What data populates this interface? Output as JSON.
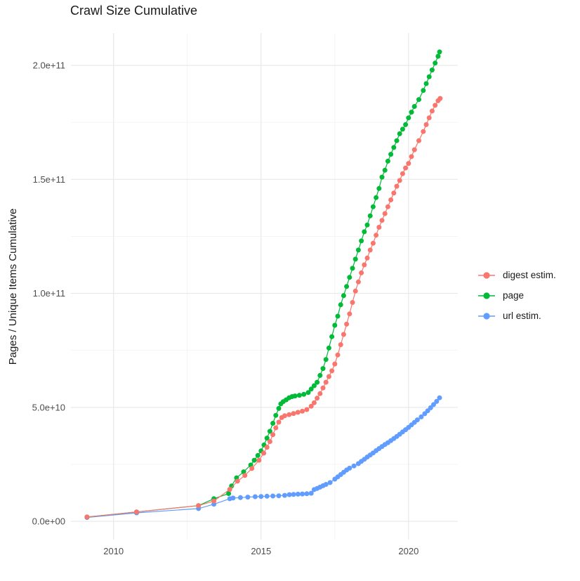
{
  "title": "Crawl Size Cumulative",
  "chart_data": {
    "type": "scatter",
    "title": "Crawl Size Cumulative",
    "xlabel": "",
    "ylabel": "Pages / Unique Items Cumulative",
    "grid": true,
    "legend_position": "right",
    "x_unit": "decimal year",
    "y_unit": "pages (values stored in units of 1e9)",
    "xlim": [
      2008.555,
      2021.67
    ],
    "ylim_e9": [
      -8,
      214.2
    ],
    "x_ticks": [
      {
        "value": 2010,
        "label": "2010"
      },
      {
        "value": 2015,
        "label": "2015"
      },
      {
        "value": 2020,
        "label": "2020"
      }
    ],
    "x_minor": [
      2012.5,
      2017.5
    ],
    "y_ticks": [
      {
        "value_e9": 0,
        "label": "0.0e+00"
      },
      {
        "value_e9": 50,
        "label": "5.0e+10"
      },
      {
        "value_e9": 100,
        "label": "1.0e+11"
      },
      {
        "value_e9": 150,
        "label": "1.5e+11"
      },
      {
        "value_e9": 200,
        "label": "2.0e+11"
      }
    ],
    "y_minor_e9": [
      25,
      75,
      125,
      175
    ],
    "draw_order": [
      2,
      1,
      0
    ],
    "series": [
      {
        "name": "digest estim.",
        "color": "#F8766D",
        "points": [
          [
            2009.1,
            1.9
          ],
          [
            2010.78,
            4.1
          ],
          [
            2012.88,
            6.9
          ],
          [
            2013.4,
            8.9
          ],
          [
            2013.94,
            14.0
          ],
          [
            2014.2,
            17.6
          ],
          [
            2014.45,
            20.1
          ],
          [
            2014.69,
            23.2
          ],
          [
            2014.93,
            26.8
          ],
          [
            2015.09,
            29.9
          ],
          [
            2015.2,
            32.5
          ],
          [
            2015.3,
            35.0
          ],
          [
            2015.4,
            38.0
          ],
          [
            2015.5,
            41.0
          ],
          [
            2015.6,
            43.5
          ],
          [
            2015.7,
            45.5
          ],
          [
            2015.8,
            46.3
          ],
          [
            2015.95,
            46.8
          ],
          [
            2016.1,
            47.3
          ],
          [
            2016.25,
            47.8
          ],
          [
            2016.4,
            48.3
          ],
          [
            2016.55,
            49.0
          ],
          [
            2016.7,
            50.5
          ],
          [
            2016.8,
            52.0
          ],
          [
            2016.9,
            54.0
          ],
          [
            2017.0,
            56.0
          ],
          [
            2017.1,
            58.5
          ],
          [
            2017.2,
            61.0
          ],
          [
            2017.3,
            63.5
          ],
          [
            2017.4,
            66.0
          ],
          [
            2017.5,
            69.0
          ],
          [
            2017.6,
            73.0
          ],
          [
            2017.7,
            77.5
          ],
          [
            2017.8,
            82.0
          ],
          [
            2017.9,
            86.5
          ],
          [
            2018.0,
            91.0
          ],
          [
            2018.1,
            96.0
          ],
          [
            2018.2,
            101.0
          ],
          [
            2018.3,
            105.0
          ],
          [
            2018.4,
            109.0
          ],
          [
            2018.5,
            112.5
          ],
          [
            2018.6,
            115.5
          ],
          [
            2018.7,
            119.0
          ],
          [
            2018.8,
            122.0
          ],
          [
            2018.9,
            125.5
          ],
          [
            2019.0,
            129.0
          ],
          [
            2019.1,
            132.0
          ],
          [
            2019.2,
            135.0
          ],
          [
            2019.3,
            138.0
          ],
          [
            2019.4,
            141.0
          ],
          [
            2019.5,
            144.0
          ],
          [
            2019.6,
            147.0
          ],
          [
            2019.7,
            149.5
          ],
          [
            2019.8,
            152.5
          ],
          [
            2019.9,
            155.0
          ],
          [
            2020.0,
            157.0
          ],
          [
            2020.1,
            160.0
          ],
          [
            2020.2,
            163.0
          ],
          [
            2020.35,
            167.0
          ],
          [
            2020.5,
            171.0
          ],
          [
            2020.6,
            174.0
          ],
          [
            2020.7,
            177.0
          ],
          [
            2020.8,
            180.0
          ],
          [
            2020.9,
            182.5
          ],
          [
            2021.0,
            184.5
          ],
          [
            2021.07,
            185.5
          ]
        ]
      },
      {
        "name": "page",
        "color": "#00BA38",
        "points": [
          [
            2009.1,
            1.9
          ],
          [
            2010.78,
            4.1
          ],
          [
            2012.88,
            6.9
          ],
          [
            2013.4,
            9.9
          ],
          [
            2013.9,
            12.2
          ],
          [
            2014.0,
            15.5
          ],
          [
            2014.17,
            19.1
          ],
          [
            2014.41,
            21.7
          ],
          [
            2014.65,
            24.7
          ],
          [
            2014.77,
            26.8
          ],
          [
            2014.89,
            28.9
          ],
          [
            2015.0,
            30.9
          ],
          [
            2015.1,
            33.5
          ],
          [
            2015.2,
            36.5
          ],
          [
            2015.3,
            39.5
          ],
          [
            2015.4,
            43.0
          ],
          [
            2015.5,
            46.5
          ],
          [
            2015.6,
            49.5
          ],
          [
            2015.67,
            51.5
          ],
          [
            2015.75,
            52.5
          ],
          [
            2015.85,
            53.3
          ],
          [
            2015.95,
            54.2
          ],
          [
            2016.05,
            54.7
          ],
          [
            2016.15,
            55.0
          ],
          [
            2016.3,
            55.3
          ],
          [
            2016.45,
            55.7
          ],
          [
            2016.6,
            56.5
          ],
          [
            2016.7,
            58.0
          ],
          [
            2016.8,
            59.5
          ],
          [
            2016.9,
            61.0
          ],
          [
            2017.0,
            64.0
          ],
          [
            2017.1,
            67.0
          ],
          [
            2017.2,
            71.0
          ],
          [
            2017.3,
            76.0
          ],
          [
            2017.4,
            81.0
          ],
          [
            2017.5,
            86.0
          ],
          [
            2017.6,
            90.0
          ],
          [
            2017.7,
            95.0
          ],
          [
            2017.8,
            99.0
          ],
          [
            2017.9,
            103.0
          ],
          [
            2018.0,
            107.0
          ],
          [
            2018.1,
            111.0
          ],
          [
            2018.2,
            115.0
          ],
          [
            2018.3,
            119.0
          ],
          [
            2018.4,
            123.0
          ],
          [
            2018.5,
            127.0
          ],
          [
            2018.6,
            130.0
          ],
          [
            2018.7,
            134.0
          ],
          [
            2018.8,
            138.0
          ],
          [
            2018.9,
            142.0
          ],
          [
            2019.0,
            146.0
          ],
          [
            2019.1,
            151.0
          ],
          [
            2019.2,
            154.0
          ],
          [
            2019.3,
            158.0
          ],
          [
            2019.4,
            161.0
          ],
          [
            2019.5,
            164.0
          ],
          [
            2019.6,
            167.0
          ],
          [
            2019.7,
            170.0
          ],
          [
            2019.8,
            172.0
          ],
          [
            2019.9,
            174.0
          ],
          [
            2020.0,
            177.0
          ],
          [
            2020.1,
            179.5
          ],
          [
            2020.2,
            182.0
          ],
          [
            2020.35,
            185.0
          ],
          [
            2020.5,
            189.0
          ],
          [
            2020.6,
            192.0
          ],
          [
            2020.7,
            195.0
          ],
          [
            2020.8,
            198.0
          ],
          [
            2020.9,
            201.0
          ],
          [
            2021.0,
            204.0
          ],
          [
            2021.05,
            205.9
          ]
        ]
      },
      {
        "name": "url estim.",
        "color": "#619CFF",
        "points": [
          [
            2009.1,
            1.7
          ],
          [
            2010.78,
            3.7
          ],
          [
            2012.88,
            5.6
          ],
          [
            2013.4,
            7.5
          ],
          [
            2013.94,
            9.9
          ],
          [
            2014.05,
            10.2
          ],
          [
            2014.3,
            10.4
          ],
          [
            2014.55,
            10.6
          ],
          [
            2014.8,
            10.8
          ],
          [
            2015.0,
            10.9
          ],
          [
            2015.2,
            11.0
          ],
          [
            2015.4,
            11.1
          ],
          [
            2015.6,
            11.2
          ],
          [
            2015.8,
            11.4
          ],
          [
            2015.96,
            11.7
          ],
          [
            2016.1,
            11.8
          ],
          [
            2016.25,
            11.9
          ],
          [
            2016.4,
            12.0
          ],
          [
            2016.55,
            12.1
          ],
          [
            2016.7,
            12.3
          ],
          [
            2016.8,
            13.9
          ],
          [
            2016.9,
            14.4
          ],
          [
            2017.0,
            15.0
          ],
          [
            2017.1,
            15.6
          ],
          [
            2017.2,
            16.2
          ],
          [
            2017.34,
            17.0
          ],
          [
            2017.5,
            18.5
          ],
          [
            2017.6,
            19.5
          ],
          [
            2017.7,
            20.5
          ],
          [
            2017.8,
            21.5
          ],
          [
            2017.9,
            22.5
          ],
          [
            2018.0,
            23.3
          ],
          [
            2018.15,
            24.3
          ],
          [
            2018.3,
            25.3
          ],
          [
            2018.4,
            26.3
          ],
          [
            2018.5,
            27.2
          ],
          [
            2018.6,
            28.2
          ],
          [
            2018.7,
            29.1
          ],
          [
            2018.8,
            30.0
          ],
          [
            2018.9,
            31.0
          ],
          [
            2019.0,
            31.9
          ],
          [
            2019.1,
            32.8
          ],
          [
            2019.2,
            33.7
          ],
          [
            2019.3,
            34.5
          ],
          [
            2019.4,
            35.4
          ],
          [
            2019.5,
            36.3
          ],
          [
            2019.6,
            37.2
          ],
          [
            2019.7,
            38.2
          ],
          [
            2019.8,
            39.2
          ],
          [
            2019.9,
            40.2
          ],
          [
            2020.0,
            41.2
          ],
          [
            2020.1,
            42.3
          ],
          [
            2020.2,
            43.4
          ],
          [
            2020.3,
            44.5
          ],
          [
            2020.43,
            45.8
          ],
          [
            2020.55,
            47.2
          ],
          [
            2020.65,
            48.5
          ],
          [
            2020.75,
            49.8
          ],
          [
            2020.85,
            51.2
          ],
          [
            2020.95,
            52.6
          ],
          [
            2021.05,
            54.2
          ]
        ]
      }
    ]
  },
  "legend": {
    "items": [
      {
        "label": "digest estim.",
        "color": "#F8766D"
      },
      {
        "label": "page",
        "color": "#00BA38"
      },
      {
        "label": "url estim.",
        "color": "#619CFF"
      }
    ]
  },
  "colors": {
    "background": "#FFFFFF",
    "grid_major": "#E8E8E8",
    "grid_minor": "#F3F3F3",
    "axis_text": "#4D4D4D",
    "text": "#1A1A1A"
  }
}
